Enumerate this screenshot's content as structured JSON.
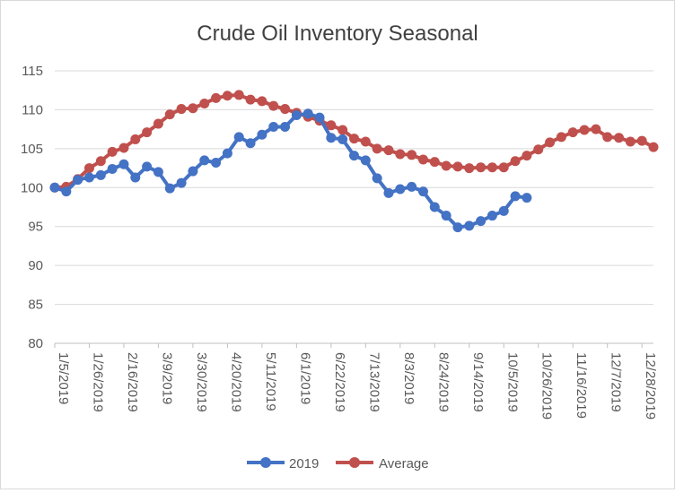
{
  "chart_data": {
    "type": "line",
    "title": "Crude Oil Inventory Seasonal",
    "xlabel": "",
    "ylabel": "",
    "ylim": [
      80,
      115
    ],
    "yticks": [
      80,
      85,
      90,
      95,
      100,
      105,
      110,
      115
    ],
    "grid": true,
    "legend_position": "bottom",
    "x_tick_labels": [
      "1/5/2019",
      "1/26/2019",
      "2/16/2019",
      "3/9/2019",
      "3/30/2019",
      "4/20/2019",
      "5/11/2019",
      "6/1/2019",
      "6/22/2019",
      "7/13/2019",
      "8/3/2019",
      "8/24/2019",
      "9/14/2019",
      "10/5/2019",
      "10/26/2019",
      "11/16/2019",
      "12/7/2019",
      "12/28/2019"
    ],
    "series": [
      {
        "name": "2019",
        "color": "#4472C4",
        "values": [
          100.0,
          99.5,
          101.0,
          101.3,
          101.6,
          102.4,
          103.0,
          101.3,
          102.7,
          102.0,
          99.9,
          100.6,
          102.1,
          103.5,
          103.2,
          104.4,
          106.5,
          105.7,
          106.8,
          107.8,
          107.8,
          109.3,
          109.5,
          109.0,
          106.4,
          106.2,
          104.1,
          103.5,
          101.2,
          99.3,
          99.8,
          100.1,
          99.5,
          97.5,
          96.4,
          94.9,
          95.1,
          95.7,
          96.4,
          97.0,
          98.9,
          98.7
        ]
      },
      {
        "name": "Average",
        "color": "#C0504D",
        "values": [
          100.0,
          100.1,
          101.1,
          102.5,
          103.4,
          104.6,
          105.1,
          106.2,
          107.1,
          108.2,
          109.4,
          110.1,
          110.2,
          110.8,
          111.5,
          111.8,
          111.9,
          111.3,
          111.1,
          110.5,
          110.1,
          109.6,
          109.1,
          108.6,
          108.0,
          107.4,
          106.3,
          105.9,
          105.0,
          104.8,
          104.3,
          104.2,
          103.6,
          103.3,
          102.8,
          102.7,
          102.5,
          102.6,
          102.6,
          102.6,
          103.4,
          104.1,
          104.9,
          105.8,
          106.5,
          107.1,
          107.4,
          107.5,
          106.5,
          106.4,
          105.9,
          106.0,
          105.2
        ]
      }
    ]
  }
}
